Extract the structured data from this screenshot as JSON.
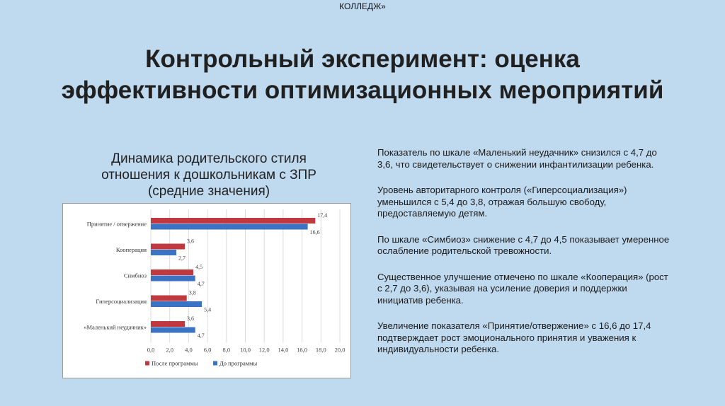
{
  "header": {
    "label": "КОЛЛЕДЖ»"
  },
  "slide": {
    "title": "Контрольный эксперимент: оценка эффективности оптимизационных мероприятий",
    "chart_heading": [
      "Динамика родительского стиля",
      "отношения к дошкольникам с ЗПР",
      "(средние значения)"
    ]
  },
  "colors": {
    "after": "#c0393f",
    "before": "#3b73c4",
    "background": "#bfd9ef"
  },
  "chart_data": {
    "type": "bar",
    "orientation": "horizontal",
    "categories": [
      "Принятие / отвержение",
      "Кооперация",
      "Симбиоз",
      "Гиперсоциализация",
      "«Маленький неудачник»"
    ],
    "series": [
      {
        "name": "После программы",
        "values": [
          17.4,
          3.6,
          4.5,
          3.8,
          3.6
        ],
        "labels": [
          "17,4",
          "3,6",
          "4,5",
          "3,8",
          "3,6"
        ],
        "color": "#c0393f"
      },
      {
        "name": "До программы",
        "values": [
          16.6,
          2.7,
          4.7,
          5.4,
          4.7
        ],
        "labels": [
          "16,6",
          "2,7",
          "4,7",
          "5,4",
          "4,7"
        ],
        "color": "#3b73c4"
      }
    ],
    "xlim": [
      0,
      20
    ],
    "xticks": [
      "0,0",
      "2,0",
      "4,0",
      "6,0",
      "8,0",
      "10,0",
      "12,0",
      "14,0",
      "16,0",
      "18,0",
      "20,0"
    ],
    "grid": true,
    "legend_position": "bottom"
  },
  "notes": [
    "Показатель по шкале «Маленький неудачник» снизился с 4,7 до 3,6, что свидетельствует о снижении инфантилизации ребенка.",
    "Уровень авторитарного контроля («Гиперсоциализация») уменьшился с 5,4 до 3,8, отражая большую свободу, предоставляемую детям.",
    "По шкале «Симбиоз» снижение с 4,7 до 4,5 показывает умеренное ослабление родительской тревожности.",
    "Существенное улучшение отмечено по шкале «Кооперация» (рост с 2,7 до 3,6), указывая на усиление доверия и поддержки инициатив ребенка.",
    "Увеличение показателя «Принятие/отвержение» с 16,6 до 17,4 подтверждает рост эмоционального принятия и уважения к индивидуальности ребенка."
  ]
}
